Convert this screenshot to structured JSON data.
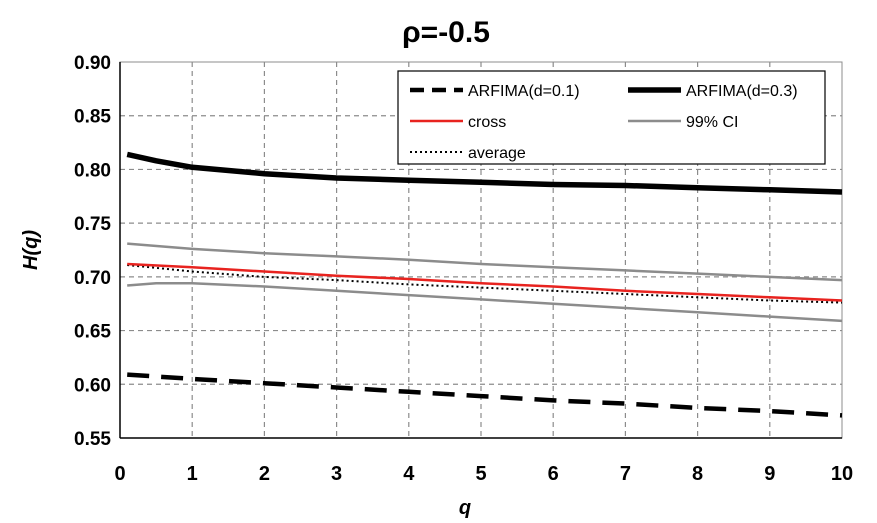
{
  "chart_data": {
    "type": "line",
    "title": "ρ=-0.5",
    "xlabel": "q",
    "ylabel": "H(q)",
    "xlim": [
      0,
      10
    ],
    "ylim": [
      0.55,
      0.9
    ],
    "x_ticks": [
      "0",
      "1",
      "2",
      "3",
      "4",
      "5",
      "6",
      "7",
      "8",
      "9",
      "10"
    ],
    "y_ticks": [
      "0.55",
      "0.60",
      "0.65",
      "0.70",
      "0.75",
      "0.80",
      "0.85",
      "0.90"
    ],
    "grid": true,
    "legend_position": "top-right",
    "series": [
      {
        "name": "ARFIMA(d=0.1)",
        "style": "dashed",
        "color": "#000000",
        "x": [
          0.1,
          1,
          2,
          3,
          4,
          5,
          6,
          7,
          8,
          9,
          10
        ],
        "values": [
          0.609,
          0.605,
          0.601,
          0.597,
          0.593,
          0.589,
          0.585,
          0.582,
          0.578,
          0.575,
          0.571
        ]
      },
      {
        "name": "ARFIMA(d=0.3)",
        "style": "solid-thick",
        "color": "#000000",
        "x": [
          0.1,
          0.5,
          1,
          2,
          3,
          4,
          5,
          6,
          7,
          8,
          9,
          10
        ],
        "values": [
          0.814,
          0.808,
          0.802,
          0.796,
          0.792,
          0.79,
          0.788,
          0.786,
          0.785,
          0.783,
          0.781,
          0.779
        ]
      },
      {
        "name": "cross",
        "style": "solid",
        "color": "#e8231f",
        "x": [
          0.1,
          1,
          2,
          3,
          4,
          5,
          6,
          7,
          8,
          9,
          10
        ],
        "values": [
          0.712,
          0.709,
          0.705,
          0.701,
          0.698,
          0.694,
          0.691,
          0.687,
          0.684,
          0.681,
          0.678
        ]
      },
      {
        "name": "99% CI",
        "style": "solid",
        "color": "#8c8c8c",
        "x": [
          0.1,
          1,
          2,
          3,
          4,
          5,
          6,
          7,
          8,
          9,
          10
        ],
        "values": [
          0.731,
          0.726,
          0.722,
          0.719,
          0.716,
          0.712,
          0.709,
          0.706,
          0.703,
          0.7,
          0.697
        ]
      },
      {
        "name": "",
        "style": "solid",
        "color": "#8c8c8c",
        "x": [
          0.1,
          0.5,
          1,
          2,
          3,
          4,
          5,
          6,
          7,
          8,
          9,
          10
        ],
        "values": [
          0.692,
          0.694,
          0.694,
          0.691,
          0.687,
          0.683,
          0.679,
          0.675,
          0.671,
          0.667,
          0.663,
          0.659
        ]
      },
      {
        "name": "average",
        "style": "dotted",
        "color": "#000000",
        "x": [
          0.1,
          1,
          2,
          3,
          4,
          5,
          6,
          7,
          8,
          9,
          10
        ],
        "values": [
          0.711,
          0.705,
          0.7,
          0.697,
          0.693,
          0.69,
          0.687,
          0.684,
          0.681,
          0.678,
          0.676
        ]
      }
    ]
  }
}
